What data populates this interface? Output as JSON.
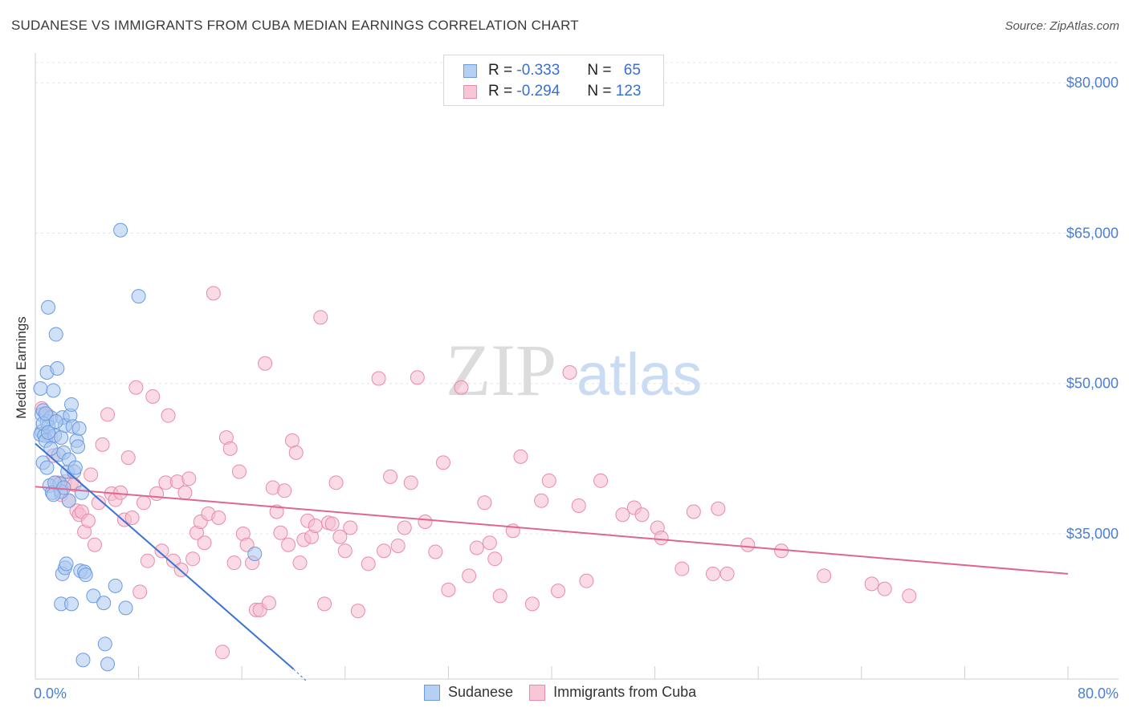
{
  "title": "SUDANESE VS IMMIGRANTS FROM CUBA MEDIAN EARNINGS CORRELATION CHART",
  "source": "Source: ZipAtlas.com",
  "watermark": {
    "zip": "ZIP",
    "atlas": "atlas"
  },
  "legend_top": [
    {
      "r_label": "R =",
      "r_value": "-0.333",
      "n_label": "N =",
      "n_value": "65"
    },
    {
      "r_label": "R =",
      "r_value": "-0.294",
      "n_label": "N =",
      "n_value": "123"
    }
  ],
  "legend_bottom": [
    "Sudanese",
    "Immigrants from Cuba"
  ],
  "colors": {
    "sudanese_fill": "#a9c6ee",
    "sudanese_stroke": "#6a9be0",
    "sudanese_line": "#3a72d4",
    "cuba_fill": "#f6bed0",
    "cuba_stroke": "#e98aa9",
    "cuba_line": "#e06690",
    "tick_label": "#4a7fd0"
  },
  "chart_data": {
    "type": "scatter",
    "xlabel": "",
    "ylabel": "Median Earnings",
    "xlim": [
      0,
      80
    ],
    "ylim": [
      20500,
      82500
    ],
    "x_tick_labels": [
      "0.0%",
      "80.0%"
    ],
    "y_ticks": [
      35000,
      50000,
      65000,
      80000
    ],
    "y_tick_labels": [
      "$35,000",
      "$50,000",
      "$65,000",
      "$80,000"
    ],
    "series": [
      {
        "name": "Sudanese",
        "R": -0.333,
        "N": 65,
        "trend": {
          "x0": 0,
          "y0": 44000,
          "x1": 20,
          "y1": 21500,
          "dash_to_x": 21,
          "dash_to_y": 20300
        },
        "points": [
          [
            0.4,
            49500
          ],
          [
            0.5,
            46900
          ],
          [
            0.6,
            47300
          ],
          [
            0.5,
            45200
          ],
          [
            0.4,
            44900
          ],
          [
            0.7,
            44800
          ],
          [
            0.9,
            46200
          ],
          [
            1.2,
            46600
          ],
          [
            1.0,
            45700
          ],
          [
            0.8,
            44300
          ],
          [
            0.6,
            42100
          ],
          [
            0.9,
            41600
          ],
          [
            1.1,
            39800
          ],
          [
            1.3,
            39100
          ],
          [
            0.9,
            51100
          ],
          [
            1.0,
            57600
          ],
          [
            1.4,
            49300
          ],
          [
            1.5,
            44800
          ],
          [
            1.7,
            51500
          ],
          [
            1.6,
            54900
          ],
          [
            1.8,
            42900
          ],
          [
            2.0,
            44600
          ],
          [
            2.1,
            46600
          ],
          [
            2.3,
            45800
          ],
          [
            2.2,
            43100
          ],
          [
            2.5,
            41200
          ],
          [
            2.6,
            38300
          ],
          [
            2.7,
            46800
          ],
          [
            2.8,
            47900
          ],
          [
            2.9,
            45700
          ],
          [
            3.0,
            41200
          ],
          [
            3.2,
            44300
          ],
          [
            3.3,
            43700
          ],
          [
            3.4,
            45500
          ],
          [
            1.9,
            40000
          ],
          [
            2.0,
            39200
          ],
          [
            2.1,
            31000
          ],
          [
            2.3,
            31600
          ],
          [
            2.4,
            32000
          ],
          [
            3.5,
            31300
          ],
          [
            3.8,
            31200
          ],
          [
            3.9,
            30900
          ],
          [
            2.0,
            28000
          ],
          [
            2.8,
            28000
          ],
          [
            4.5,
            28800
          ],
          [
            5.3,
            28100
          ],
          [
            6.2,
            29800
          ],
          [
            7.0,
            27600
          ],
          [
            6.6,
            65300
          ],
          [
            8.0,
            58700
          ],
          [
            1.5,
            40100
          ],
          [
            2.2,
            39600
          ],
          [
            1.2,
            43500
          ],
          [
            0.6,
            46000
          ],
          [
            1.0,
            45100
          ],
          [
            3.6,
            39100
          ],
          [
            5.4,
            24000
          ],
          [
            3.7,
            22400
          ],
          [
            5.6,
            22000
          ],
          [
            17.0,
            33000
          ],
          [
            1.4,
            38900
          ],
          [
            0.8,
            47000
          ],
          [
            2.6,
            42400
          ],
          [
            1.6,
            46200
          ],
          [
            3.1,
            41600
          ]
        ]
      },
      {
        "name": "Immigrants from Cuba",
        "R": -0.294,
        "N": 123,
        "trend": {
          "x0": 0,
          "y0": 39700,
          "x1": 80,
          "y1": 31000
        },
        "points": [
          [
            0.5,
            47500
          ],
          [
            0.9,
            46900
          ],
          [
            1.2,
            44700
          ],
          [
            1.4,
            42800
          ],
          [
            1.7,
            40100
          ],
          [
            2.0,
            38900
          ],
          [
            2.3,
            40200
          ],
          [
            2.6,
            38300
          ],
          [
            2.8,
            40100
          ],
          [
            3.0,
            39900
          ],
          [
            3.2,
            37300
          ],
          [
            3.4,
            36900
          ],
          [
            3.6,
            37200
          ],
          [
            3.8,
            35200
          ],
          [
            4.1,
            36300
          ],
          [
            4.3,
            40900
          ],
          [
            4.6,
            33900
          ],
          [
            4.9,
            38100
          ],
          [
            5.2,
            43900
          ],
          [
            5.6,
            46900
          ],
          [
            5.9,
            39000
          ],
          [
            6.2,
            38400
          ],
          [
            6.6,
            39100
          ],
          [
            6.9,
            36400
          ],
          [
            7.2,
            42600
          ],
          [
            7.5,
            36600
          ],
          [
            7.8,
            49600
          ],
          [
            8.1,
            29200
          ],
          [
            8.4,
            38100
          ],
          [
            8.7,
            32300
          ],
          [
            9.1,
            48700
          ],
          [
            9.4,
            39000
          ],
          [
            9.8,
            33300
          ],
          [
            10.1,
            40100
          ],
          [
            10.3,
            46800
          ],
          [
            10.7,
            32300
          ],
          [
            11.0,
            40200
          ],
          [
            11.3,
            31400
          ],
          [
            11.6,
            39100
          ],
          [
            11.9,
            40500
          ],
          [
            12.2,
            32500
          ],
          [
            12.5,
            35100
          ],
          [
            12.8,
            36200
          ],
          [
            13.1,
            34100
          ],
          [
            13.4,
            37000
          ],
          [
            13.8,
            59000
          ],
          [
            14.2,
            36600
          ],
          [
            14.5,
            23200
          ],
          [
            14.8,
            44600
          ],
          [
            15.1,
            43500
          ],
          [
            15.4,
            32100
          ],
          [
            15.8,
            41200
          ],
          [
            16.1,
            35000
          ],
          [
            16.4,
            33900
          ],
          [
            16.8,
            32100
          ],
          [
            17.1,
            27400
          ],
          [
            17.4,
            27400
          ],
          [
            17.8,
            52000
          ],
          [
            18.1,
            28100
          ],
          [
            18.4,
            39600
          ],
          [
            18.7,
            37200
          ],
          [
            19.0,
            35100
          ],
          [
            19.3,
            39300
          ],
          [
            19.6,
            33900
          ],
          [
            19.9,
            44300
          ],
          [
            20.2,
            43100
          ],
          [
            20.5,
            32100
          ],
          [
            20.8,
            34400
          ],
          [
            21.1,
            36300
          ],
          [
            21.4,
            34700
          ],
          [
            21.7,
            35800
          ],
          [
            22.1,
            56600
          ],
          [
            22.4,
            28000
          ],
          [
            22.7,
            36100
          ],
          [
            23.0,
            36000
          ],
          [
            23.3,
            40100
          ],
          [
            23.6,
            34700
          ],
          [
            24.0,
            33300
          ],
          [
            24.4,
            35600
          ],
          [
            25.0,
            27300
          ],
          [
            25.8,
            32000
          ],
          [
            26.6,
            50500
          ],
          [
            27.0,
            33300
          ],
          [
            27.5,
            40700
          ],
          [
            28.1,
            33800
          ],
          [
            28.6,
            35600
          ],
          [
            29.1,
            40100
          ],
          [
            29.6,
            50600
          ],
          [
            30.2,
            36200
          ],
          [
            31.0,
            33200
          ],
          [
            31.6,
            42100
          ],
          [
            32.0,
            29400
          ],
          [
            33.0,
            49600
          ],
          [
            33.6,
            30800
          ],
          [
            34.2,
            33600
          ],
          [
            34.8,
            38100
          ],
          [
            35.2,
            34100
          ],
          [
            35.6,
            32500
          ],
          [
            36.0,
            28800
          ],
          [
            37.0,
            35300
          ],
          [
            37.6,
            42700
          ],
          [
            38.5,
            28000
          ],
          [
            39.2,
            38300
          ],
          [
            39.8,
            40300
          ],
          [
            40.5,
            29300
          ],
          [
            41.4,
            51100
          ],
          [
            42.1,
            37800
          ],
          [
            42.7,
            30300
          ],
          [
            43.8,
            40300
          ],
          [
            45.5,
            36900
          ],
          [
            46.4,
            37600
          ],
          [
            47.0,
            36900
          ],
          [
            48.2,
            35600
          ],
          [
            48.5,
            34600
          ],
          [
            50.1,
            31500
          ],
          [
            51.0,
            37200
          ],
          [
            52.5,
            31000
          ],
          [
            52.9,
            37500
          ],
          [
            53.6,
            31000
          ],
          [
            55.2,
            33900
          ],
          [
            57.8,
            33300
          ],
          [
            61.1,
            30800
          ],
          [
            64.8,
            30000
          ],
          [
            65.8,
            29500
          ],
          [
            67.7,
            28800
          ]
        ]
      }
    ]
  }
}
